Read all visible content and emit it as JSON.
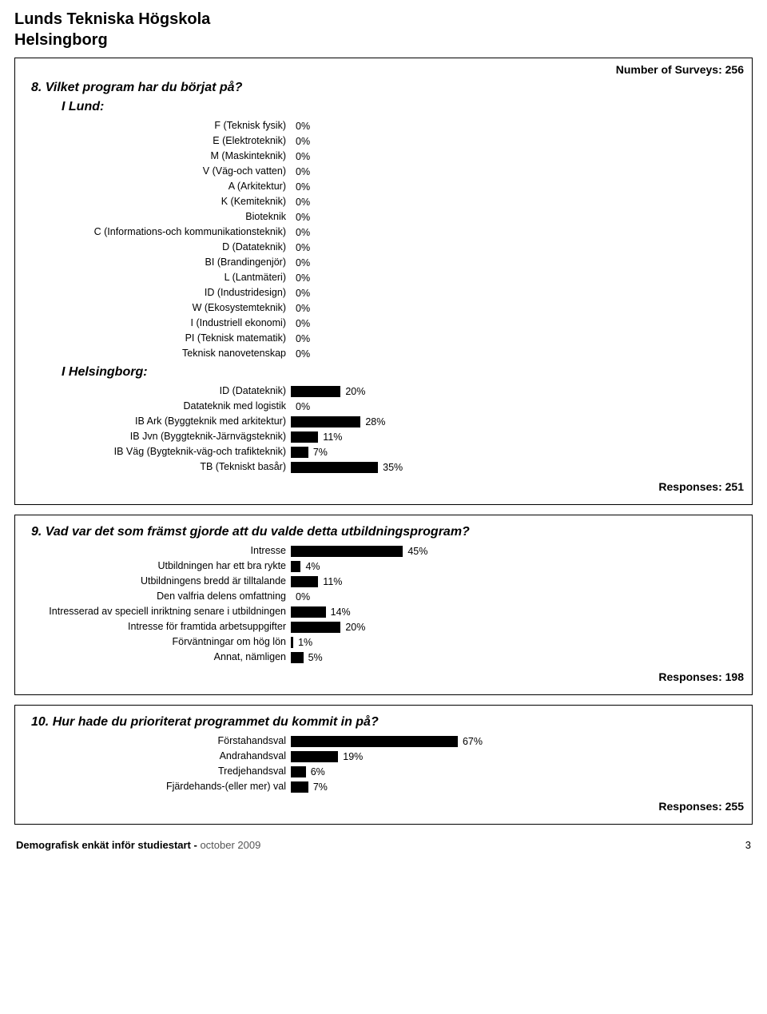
{
  "header": {
    "institution": "Lunds Tekniska Högskola",
    "campus": "Helsingborg"
  },
  "surveys_label": "Number of Surveys:",
  "surveys_count": 256,
  "bar_color": "#000000",
  "chart_scale_pct": 0.55,
  "questions": [
    {
      "number": "8.",
      "text": "Vilket program har du börjat på?",
      "sections": [
        {
          "heading": "I Lund:",
          "items": [
            {
              "label": "F (Teknisk fysik)",
              "pct": 0
            },
            {
              "label": "E (Elektroteknik)",
              "pct": 0
            },
            {
              "label": "M (Maskinteknik)",
              "pct": 0
            },
            {
              "label": "V (Väg-och vatten)",
              "pct": 0
            },
            {
              "label": "A (Arkitektur)",
              "pct": 0
            },
            {
              "label": "K (Kemiteknik)",
              "pct": 0
            },
            {
              "label": "Bioteknik",
              "pct": 0
            },
            {
              "label": "C (Informations-och kommunikationsteknik)",
              "pct": 0
            },
            {
              "label": "D (Datateknik)",
              "pct": 0
            },
            {
              "label": "BI (Brandingenjör)",
              "pct": 0
            },
            {
              "label": "L (Lantmäteri)",
              "pct": 0
            },
            {
              "label": "ID (Industridesign)",
              "pct": 0
            },
            {
              "label": "W (Ekosystemteknik)",
              "pct": 0
            },
            {
              "label": "I (Industriell ekonomi)",
              "pct": 0
            },
            {
              "label": "PI (Teknisk matematik)",
              "pct": 0
            },
            {
              "label": "Teknisk nanovetenskap",
              "pct": 0
            }
          ]
        },
        {
          "heading": "I Helsingborg:",
          "items": [
            {
              "label": "ID (Datateknik)",
              "pct": 20
            },
            {
              "label": "Datateknik med logistik",
              "pct": 0
            },
            {
              "label": "IB Ark (Byggteknik med arkitektur)",
              "pct": 28
            },
            {
              "label": "IB Jvn (Byggteknik-Järnvägsteknik)",
              "pct": 11
            },
            {
              "label": "IB Väg (Bygteknik-väg-och trafikteknik)",
              "pct": 7
            },
            {
              "label": "TB (Tekniskt basår)",
              "pct": 35
            }
          ]
        }
      ],
      "responses_label": "Responses:",
      "responses": 251
    },
    {
      "number": "9.",
      "text": "Vad var det som främst gjorde att du valde detta utbildningsprogram?",
      "sections": [
        {
          "heading": null,
          "items": [
            {
              "label": "Intresse",
              "pct": 45
            },
            {
              "label": "Utbildningen har ett bra rykte",
              "pct": 4
            },
            {
              "label": "Utbildningens bredd är tilltalande",
              "pct": 11
            },
            {
              "label": "Den valfria delens omfattning",
              "pct": 0
            },
            {
              "label": "Intresserad av speciell inriktning senare i utbildningen",
              "pct": 14
            },
            {
              "label": "Intresse för framtida arbetsuppgifter",
              "pct": 20
            },
            {
              "label": "Förväntningar om hög lön",
              "pct": 1
            },
            {
              "label": "Annat, nämligen",
              "pct": 5
            }
          ]
        }
      ],
      "responses_label": "Responses:",
      "responses": 198
    },
    {
      "number": "10.",
      "text": "Hur hade du prioriterat programmet du kommit in på?",
      "sections": [
        {
          "heading": null,
          "items": [
            {
              "label": "Förstahandsval",
              "pct": 67
            },
            {
              "label": "Andrahandsval",
              "pct": 19
            },
            {
              "label": "Tredjehandsval",
              "pct": 6
            },
            {
              "label": "Fjärdehands-(eller mer) val",
              "pct": 7
            }
          ]
        }
      ],
      "responses_label": "Responses:",
      "responses": 255
    }
  ],
  "footer": {
    "title_bold": "Demografisk enkät inför studiestart  - ",
    "title_light": "  october 2009",
    "page": "3"
  }
}
